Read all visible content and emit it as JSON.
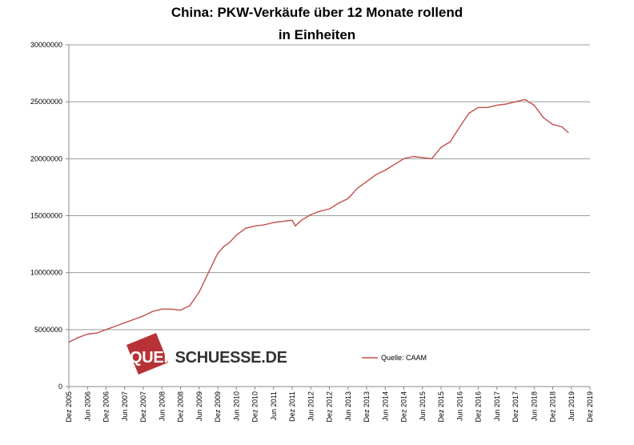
{
  "chart_data": {
    "type": "line",
    "title": "China: PKW-Verkäufe  über 12 Monate rollend",
    "subtitle": "in Einheiten",
    "ylim": [
      0,
      30000000
    ],
    "yticks": [
      "0",
      "5000000",
      "10000000",
      "15000000",
      "20000000",
      "25000000",
      "30000000"
    ],
    "xticks": [
      "Dez 2005",
      "Jun 2006",
      "Dez 2006",
      "Jun 2007",
      "Dez 2007",
      "Jun 2008",
      "Dez 2008",
      "Jun 2009",
      "Dez 2009",
      "Jun 2010",
      "Dez 2010",
      "Jun 2011",
      "Dez 2011",
      "Jun 2012",
      "Dez 2012",
      "Jun 2013",
      "Dez 2013",
      "Jun 2014",
      "Dez 2014",
      "Jun 2015",
      "Dez 2015",
      "Jun 2016",
      "Dez 2016",
      "Jun 2017",
      "Dez 2017",
      "Jun 2018",
      "Dez 2018",
      "Jun 2019",
      "Dez 2019"
    ],
    "grid": true,
    "legend": "center-right",
    "color": "#c0504d",
    "series": [
      {
        "name": "Quelle: CAAM",
        "x": [
          "2005-12",
          "2006-03",
          "2006-06",
          "2006-09",
          "2006-12",
          "2007-03",
          "2007-06",
          "2007-09",
          "2007-12",
          "2008-03",
          "2008-06",
          "2008-09",
          "2008-12",
          "2009-03",
          "2009-06",
          "2009-09",
          "2009-12",
          "2010-02",
          "2010-04",
          "2010-06",
          "2010-09",
          "2010-12",
          "2011-03",
          "2011-06",
          "2011-09",
          "2011-12",
          "2012-01",
          "2012-03",
          "2012-06",
          "2012-09",
          "2012-12",
          "2013-03",
          "2013-06",
          "2013-09",
          "2013-12",
          "2014-03",
          "2014-06",
          "2014-09",
          "2014-12",
          "2015-03",
          "2015-06",
          "2015-09",
          "2015-12",
          "2016-03",
          "2016-06",
          "2016-09",
          "2016-12",
          "2017-03",
          "2017-06",
          "2017-09",
          "2017-12",
          "2018-03",
          "2018-06",
          "2018-09",
          "2018-12",
          "2019-03",
          "2019-05"
        ],
        "values": [
          3900000,
          4300000,
          4600000,
          4700000,
          5000000,
          5300000,
          5600000,
          5900000,
          6200000,
          6600000,
          6800000,
          6800000,
          6700000,
          7100000,
          8300000,
          10000000,
          11700000,
          12300000,
          12700000,
          13300000,
          13900000,
          14100000,
          14200000,
          14400000,
          14500000,
          14600000,
          14100000,
          14600000,
          15100000,
          15400000,
          15600000,
          16100000,
          16500000,
          17400000,
          18000000,
          18600000,
          19000000,
          19500000,
          20000000,
          20200000,
          20100000,
          20000000,
          21000000,
          21500000,
          22800000,
          24000000,
          24500000,
          24500000,
          24700000,
          24800000,
          25000000,
          25200000,
          24700000,
          23600000,
          23000000,
          22800000,
          22300000
        ]
      }
    ]
  },
  "legend": {
    "label": "Quelle: CAAM"
  },
  "watermark": {
    "part1": "QUER",
    "part2": "SCHUESSE.DE"
  }
}
